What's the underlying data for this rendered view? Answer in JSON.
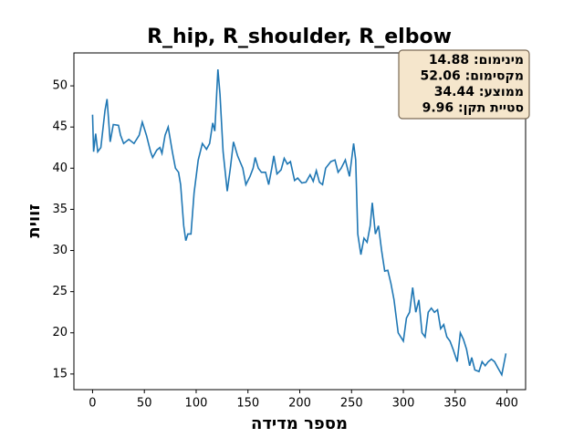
{
  "chart_data": {
    "type": "line",
    "title": "R_hip, R_shoulder, R_elbow",
    "x_label": "מספר מדידה",
    "y_label": "זווית",
    "annotations": [
      "מינימום: 14.88",
      "מקסימום: 52.06",
      "ממוצע: 34.44",
      "סטיית תקן: 9.96"
    ],
    "color": "#1f77b4",
    "xlim": [
      -18,
      418
    ],
    "ylim": [
      13.1,
      54.0
    ],
    "xticks": [
      0,
      50,
      100,
      150,
      200,
      250,
      300,
      350,
      400
    ],
    "yticks": [
      15,
      20,
      25,
      30,
      35,
      40,
      45,
      50
    ],
    "x": [
      0,
      1,
      3,
      5,
      8,
      12,
      14,
      17,
      20,
      25,
      27,
      30,
      35,
      40,
      45,
      48,
      52,
      56,
      58,
      62,
      65,
      67,
      70,
      73,
      77,
      80,
      83,
      85,
      88,
      90,
      92,
      95,
      98,
      102,
      106,
      110,
      113,
      116,
      118,
      121,
      123,
      126,
      130,
      133,
      136,
      140,
      145,
      148,
      152,
      155,
      157,
      160,
      163,
      167,
      170,
      173,
      175,
      178,
      182,
      185,
      188,
      191,
      195,
      198,
      202,
      206,
      210,
      213,
      216,
      219,
      222,
      225,
      230,
      234,
      237,
      240,
      244,
      248,
      252,
      254,
      256,
      259,
      262,
      265,
      268,
      270,
      273,
      276,
      279,
      282,
      285,
      288,
      291,
      295,
      300,
      303,
      306,
      309,
      312,
      315,
      318,
      321,
      324,
      327,
      330,
      333,
      336,
      339,
      342,
      345,
      348,
      352,
      355,
      358,
      361,
      364,
      366,
      369,
      373,
      376,
      379,
      382,
      385,
      388,
      391,
      395,
      399
    ],
    "values": [
      46.5,
      42,
      44.2,
      42,
      42.5,
      47,
      48.4,
      43.2,
      45.3,
      45.2,
      44,
      43,
      43.5,
      43,
      44,
      45.6,
      44,
      42,
      41.3,
      42.2,
      42.5,
      41.8,
      44,
      45,
      42,
      40,
      39.5,
      38,
      33,
      31.2,
      32,
      32,
      37,
      41,
      43,
      42.3,
      43,
      45.5,
      44.5,
      52,
      49,
      42,
      37.2,
      40,
      43.2,
      41.5,
      40,
      38,
      39,
      40,
      41.3,
      40,
      39.5,
      39.5,
      38,
      40,
      41.5,
      39.3,
      39.8,
      41.2,
      40.5,
      40.8,
      38.5,
      38.8,
      38.2,
      38.3,
      39.2,
      38.4,
      39.7,
      38.3,
      38,
      40,
      40.8,
      41,
      39.5,
      40,
      41,
      39,
      43,
      41,
      32,
      29.5,
      31.5,
      31,
      33,
      35.8,
      32,
      33,
      30,
      27.5,
      27.6,
      26,
      24,
      20,
      19,
      21.8,
      22.5,
      25.5,
      22.5,
      24,
      20,
      19.5,
      22.5,
      23,
      22.5,
      22.8,
      20.5,
      21,
      19.5,
      19,
      18,
      16.5,
      20,
      19.2,
      18,
      16,
      17,
      15.5,
      15.3,
      16.5,
      16,
      16.5,
      16.8,
      16.5,
      15.8,
      14.9,
      17.5
    ]
  }
}
